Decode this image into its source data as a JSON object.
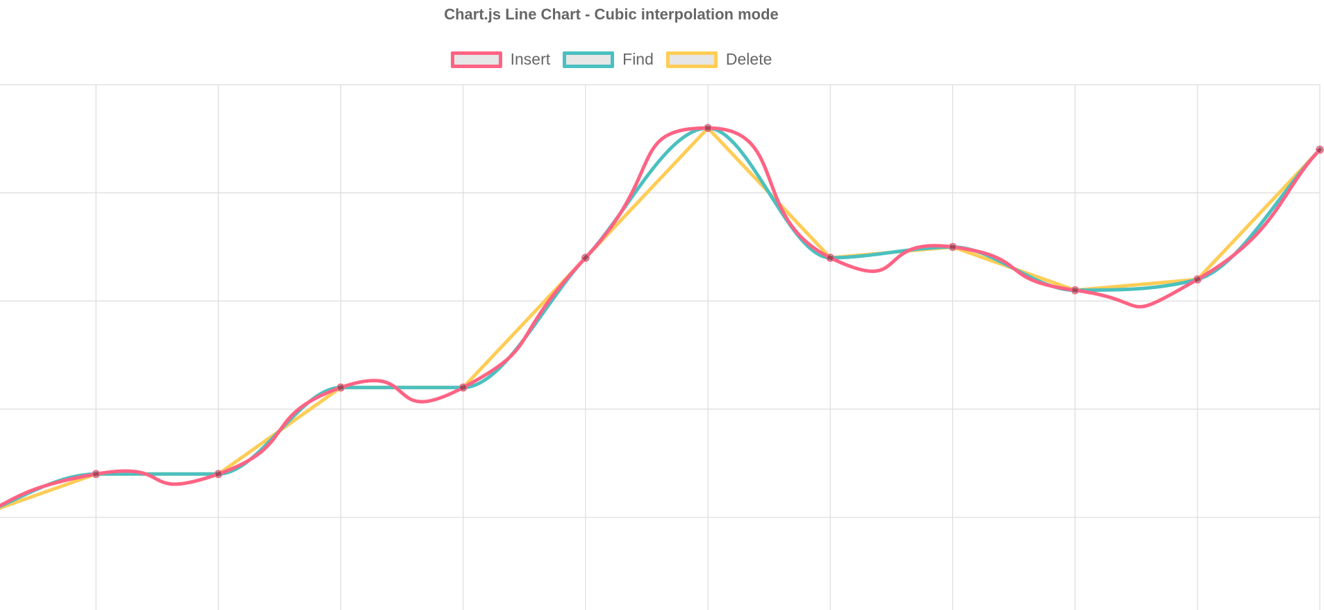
{
  "chart_data": {
    "type": "line",
    "title": "Chart.js Line Chart - Cubic interpolation mode",
    "xlabel": "",
    "ylabel": "",
    "x": [
      0,
      1,
      2,
      3,
      4,
      5,
      6,
      7,
      8,
      9,
      10,
      11
    ],
    "ylim": [
      -75,
      200
    ],
    "grid": true,
    "legend_position": "top",
    "series": [
      {
        "name": "Insert",
        "color": "#ff6384",
        "tension": "cubic",
        "values": [
          0,
          20,
          20,
          60,
          60,
          120,
          180,
          120,
          125,
          105,
          110,
          170
        ]
      },
      {
        "name": "Find",
        "color": "#4bc0c0",
        "tension": "monotone",
        "values": [
          0,
          20,
          20,
          60,
          60,
          120,
          180,
          120,
          125,
          105,
          110,
          170
        ]
      },
      {
        "name": "Delete",
        "color": "#ffcd56",
        "tension": "none",
        "values": [
          0,
          20,
          20,
          60,
          60,
          120,
          180,
          120,
          125,
          105,
          110,
          170
        ]
      }
    ]
  }
}
